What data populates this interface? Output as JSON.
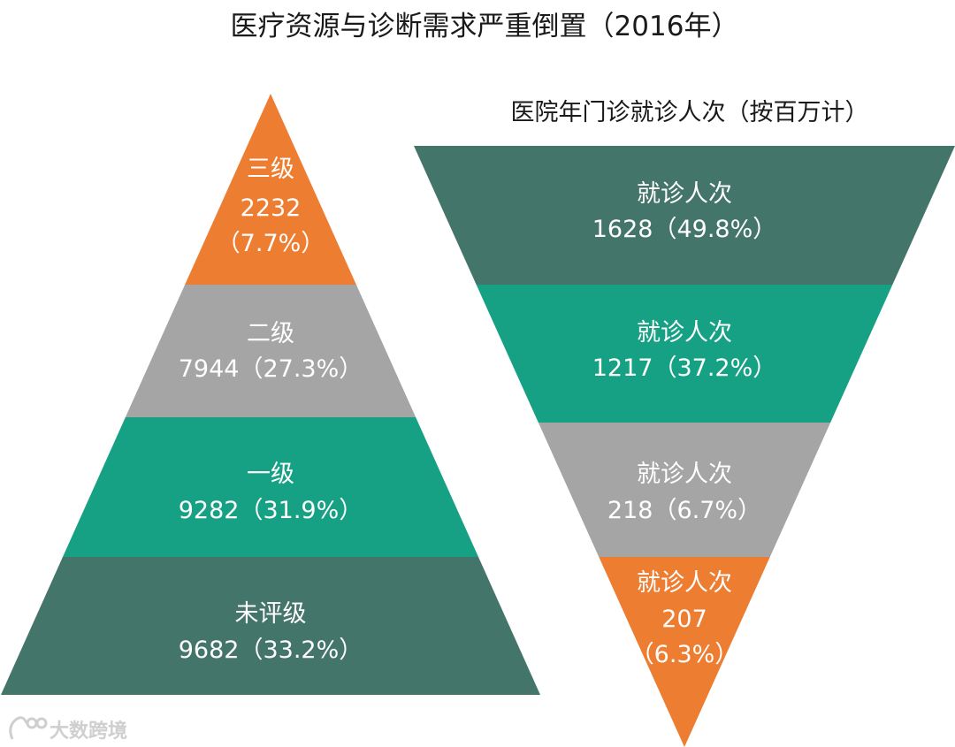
{
  "colors": {
    "orange": "#ED7D31",
    "gray": "#A5A5A5",
    "teal": "#17A184",
    "darkgreen": "#44756A",
    "text": "#FFFFFF"
  },
  "watermark": "大数跨境",
  "chart_data": [
    {
      "type": "pyramid",
      "title": "医疗资源与诊断需求严重倒置（2016年）",
      "segments": [
        {
          "label": "三级",
          "value": 2232,
          "percent": "（7.7%）",
          "color": "#ED7D31"
        },
        {
          "label": "二级",
          "value": 7944,
          "percent": "（27.3%）",
          "color": "#A5A5A5"
        },
        {
          "label": "一级",
          "value": 9282,
          "percent": "（31.9%）",
          "color": "#17A184"
        },
        {
          "label": "未评级",
          "value": 9682,
          "percent": "（33.2%）",
          "color": "#44756A"
        }
      ]
    },
    {
      "type": "funnel",
      "title": "医院年门诊就诊人次（按百万计）",
      "segments": [
        {
          "label": "就诊人次",
          "value": 1628,
          "percent": "（49.8%）",
          "color": "#44756A"
        },
        {
          "label": "就诊人次",
          "value": 1217,
          "percent": "（37.2%）",
          "color": "#17A184"
        },
        {
          "label": "就诊人次",
          "value": 218,
          "percent": "（6.7%）",
          "color": "#A5A5A5"
        },
        {
          "label": "就诊人次",
          "value": 207,
          "percent": "（6.3%）",
          "color": "#ED7D31"
        }
      ]
    }
  ]
}
